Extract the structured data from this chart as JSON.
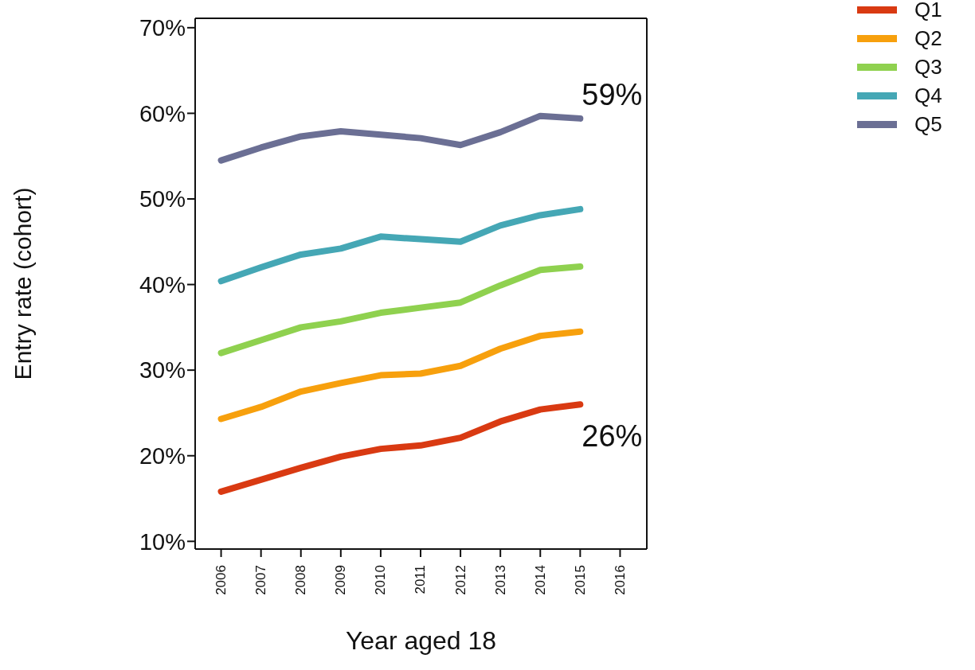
{
  "chart_data": {
    "type": "line",
    "xlabel": "Year aged 18",
    "ylabel": "Entry rate (cohort)",
    "x": [
      2006,
      2007,
      2008,
      2009,
      2010,
      2011,
      2012,
      2013,
      2014,
      2015
    ],
    "series": [
      {
        "name": "Q1",
        "color": "#d93a12",
        "values": [
          15.8,
          17.2,
          18.6,
          19.9,
          20.8,
          21.2,
          22.1,
          24.0,
          25.4,
          26.0
        ]
      },
      {
        "name": "Q2",
        "color": "#f7a00d",
        "values": [
          24.3,
          25.7,
          27.5,
          28.5,
          29.4,
          29.6,
          30.5,
          32.5,
          34.0,
          34.5
        ]
      },
      {
        "name": "Q3",
        "color": "#8fd14f",
        "values": [
          32.0,
          33.5,
          35.0,
          35.7,
          36.7,
          37.3,
          37.9,
          39.9,
          41.7,
          42.1
        ]
      },
      {
        "name": "Q4",
        "color": "#45a7b5",
        "values": [
          40.4,
          42.0,
          43.5,
          44.2,
          45.6,
          45.3,
          45.0,
          46.9,
          48.1,
          48.8
        ]
      },
      {
        "name": "Q5",
        "color": "#6b6f94",
        "values": [
          54.5,
          56.0,
          57.3,
          57.9,
          57.5,
          57.1,
          56.3,
          57.8,
          59.7,
          59.4
        ]
      }
    ],
    "xlim": [
      2005.35,
      2016.67
    ],
    "xticks": [
      2006,
      2007,
      2008,
      2009,
      2010,
      2011,
      2012,
      2013,
      2014,
      2015,
      2016
    ],
    "ylim": [
      9.1,
      71.1
    ],
    "yticks": [
      {
        "value": 10,
        "label": "10%"
      },
      {
        "value": 20,
        "label": "20%"
      },
      {
        "value": 30,
        "label": "30%"
      },
      {
        "value": 40,
        "label": "40%"
      },
      {
        "value": 50,
        "label": "50%"
      },
      {
        "value": 60,
        "label": "60%"
      },
      {
        "value": 70,
        "label": "70%"
      }
    ],
    "annotations": [
      {
        "text": "59%",
        "x": 2015,
        "y": 59.4
      },
      {
        "text": "26%",
        "x": 2015,
        "y": 26.0
      }
    ],
    "legend": "top right",
    "grid": false,
    "marker": "none",
    "line_style": "solid"
  }
}
